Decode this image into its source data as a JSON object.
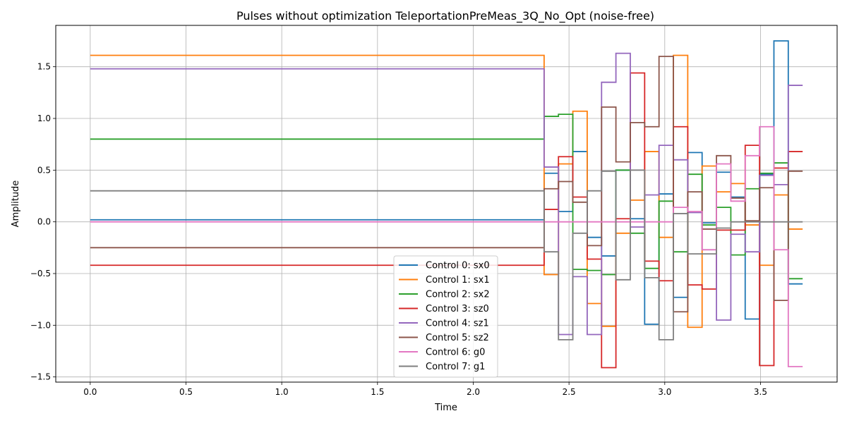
{
  "chart_data": {
    "type": "line",
    "title": "Pulses without optimization TeleportationPreMeas_3Q_No_Opt (noise-free)",
    "xlabel": "Time",
    "ylabel": "Amplitude",
    "xlim": [
      -0.18,
      3.9
    ],
    "ylim": [
      -1.55,
      1.9
    ],
    "xticks": [
      0.0,
      0.5,
      1.0,
      1.5,
      2.0,
      2.5,
      3.0,
      3.5
    ],
    "xtick_labels": [
      "0.0",
      "0.5",
      "1.0",
      "1.5",
      "2.0",
      "2.5",
      "3.0",
      "3.5"
    ],
    "yticks": [
      -1.5,
      -1.0,
      -0.5,
      0.0,
      0.5,
      1.0,
      1.5
    ],
    "ytick_labels": [
      "−1.5",
      "−1.0",
      "−0.5",
      "0.0",
      "0.5",
      "1.0",
      "1.5"
    ],
    "grid": true,
    "legend_position": "bottom-center",
    "step": true,
    "time_edges": [
      0.0,
      2.37,
      2.445,
      2.52,
      2.595,
      2.67,
      2.745,
      2.82,
      2.895,
      2.97,
      3.045,
      3.12,
      3.195,
      3.27,
      3.345,
      3.42,
      3.495,
      3.57,
      3.645,
      3.72
    ],
    "series": [
      {
        "name": "Control 0: sx0",
        "color": "#1f77b4",
        "values": [
          0.02,
          0.47,
          0.1,
          0.68,
          -0.15,
          -0.33,
          0.5,
          0.03,
          -0.99,
          0.27,
          -0.73,
          0.67,
          -0.01,
          0.48,
          0.24,
          -0.94,
          0.46,
          1.75,
          -0.6
        ]
      },
      {
        "name": "Control 1: sx1",
        "color": "#ff7f0e",
        "values": [
          1.61,
          -0.51,
          0.56,
          1.07,
          -0.79,
          -1.01,
          -0.11,
          0.21,
          0.68,
          -0.15,
          1.61,
          -1.02,
          0.54,
          0.29,
          0.37,
          -0.03,
          -0.42,
          0.26,
          -0.07
        ]
      },
      {
        "name": "Control 2: sx2",
        "color": "#2ca02c",
        "values": [
          0.8,
          1.02,
          1.04,
          -0.46,
          -0.47,
          -0.51,
          0.5,
          -0.11,
          -0.45,
          0.2,
          -0.29,
          0.46,
          -0.03,
          0.14,
          -0.32,
          0.32,
          0.47,
          0.57,
          -0.55
        ]
      },
      {
        "name": "Control 3: sz0",
        "color": "#d62728",
        "values": [
          -0.42,
          0.12,
          0.63,
          0.24,
          -0.36,
          -1.41,
          0.03,
          1.44,
          -0.38,
          -0.57,
          0.92,
          -0.61,
          -0.65,
          -0.08,
          -0.08,
          0.74,
          -1.39,
          0.52,
          0.68
        ]
      },
      {
        "name": "Control 4: sz1",
        "color": "#9467bd",
        "values": [
          1.48,
          0.53,
          -1.09,
          -0.53,
          -1.09,
          1.35,
          1.63,
          -0.05,
          0.26,
          0.74,
          0.6,
          0.09,
          -0.27,
          -0.95,
          -0.12,
          -0.29,
          0.45,
          0.36,
          1.32
        ]
      },
      {
        "name": "Control 5: sz2",
        "color": "#8c564b",
        "values": [
          -0.25,
          0.32,
          0.39,
          0.19,
          -0.23,
          1.11,
          0.58,
          0.96,
          0.92,
          1.6,
          -0.87,
          0.29,
          -0.07,
          0.64,
          0.23,
          0.01,
          0.33,
          -0.76,
          0.49
        ]
      },
      {
        "name": "Control 6: g0",
        "color": "#e377c2",
        "values": [
          0.0,
          0.0,
          0.0,
          0.0,
          0.0,
          0.0,
          0.0,
          0.0,
          0.0,
          0.0,
          0.14,
          0.1,
          -0.27,
          0.56,
          0.2,
          0.64,
          0.92,
          -0.27,
          -1.4
        ]
      },
      {
        "name": "Control 7: g1",
        "color": "#7f7f7f",
        "values": [
          0.3,
          -0.29,
          -1.14,
          -0.11,
          0.3,
          0.49,
          -0.56,
          0.5,
          -0.54,
          -1.14,
          0.08,
          -0.31,
          -0.31,
          -0.06,
          0.0,
          0.0,
          0.0,
          0.0,
          0.0
        ]
      }
    ]
  }
}
